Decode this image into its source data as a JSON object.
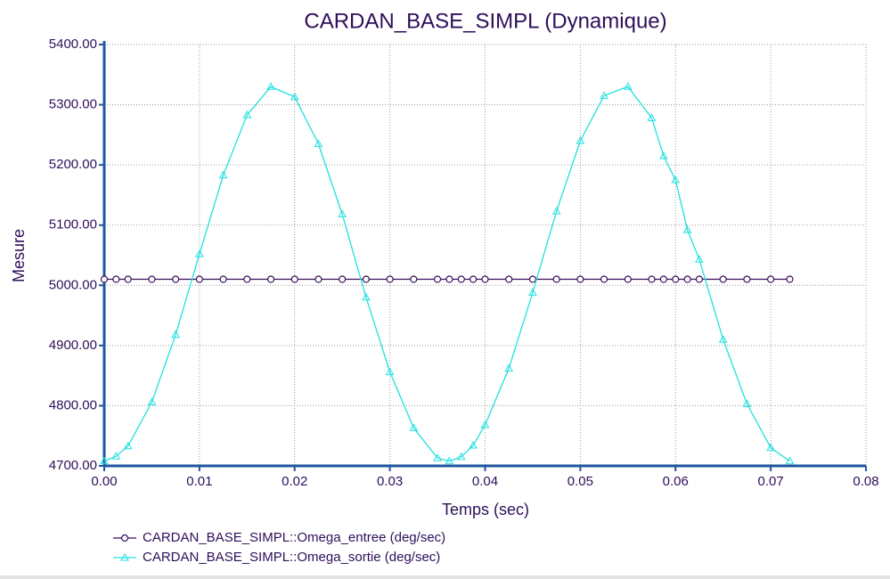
{
  "chart_data": {
    "type": "line",
    "title": "CARDAN_BASE_SIMPL (Dynamique)",
    "x_label": "Temps (sec)",
    "y_label": "Mesure",
    "x": [
      0,
      0.00125,
      0.0025,
      0.005,
      0.0075,
      0.01,
      0.0125,
      0.015,
      0.0175,
      0.02,
      0.0225,
      0.025,
      0.0275,
      0.03,
      0.0325,
      0.035,
      0.03625,
      0.0375,
      0.03875,
      0.04,
      0.0425,
      0.045,
      0.0475,
      0.05,
      0.0525,
      0.055,
      0.0575,
      0.05875,
      0.06,
      0.06125,
      0.0625,
      0.065,
      0.0675,
      0.07,
      0.072
    ],
    "series": [
      {
        "name": "CARDAN_BASE_SIMPL::Omega_entree (deg/sec)",
        "color": "#3b0f5e",
        "marker": "circle",
        "values": [
          5010,
          5010,
          5010,
          5010,
          5010,
          5010,
          5010,
          5010,
          5010,
          5010,
          5010,
          5010,
          5010,
          5010,
          5010,
          5010,
          5010,
          5010,
          5010,
          5010,
          5010,
          5010,
          5010,
          5010,
          5010,
          5010,
          5010,
          5010,
          5010,
          5010,
          5010,
          5010,
          5010,
          5010,
          5010
        ]
      },
      {
        "name": "CARDAN_BASE_SIMPL::Omega_sortie (deg/sec)",
        "color": "#22e0e0",
        "marker": "triangle",
        "values": [
          4708,
          4716,
          4733,
          4806,
          4918,
          5052,
          5183,
          5283,
          5330,
          5313,
          5235,
          5118,
          4980,
          4856,
          4763,
          4713,
          4708,
          4715,
          4734,
          4768,
          4862,
          4988,
          5123,
          5240,
          5315,
          5330,
          5278,
          5215,
          5175,
          5092,
          5043,
          4910,
          4803,
          4730,
          4708
        ]
      }
    ],
    "xlim": [
      0,
      0.08
    ],
    "xticks": [
      {
        "value": 0,
        "label": "0.00"
      },
      {
        "value": 0.01,
        "label": "0.01"
      },
      {
        "value": 0.02,
        "label": "0.02"
      },
      {
        "value": 0.03,
        "label": "0.03"
      },
      {
        "value": 0.04,
        "label": "0.04"
      },
      {
        "value": 0.05,
        "label": "0.05"
      },
      {
        "value": 0.06,
        "label": "0.06"
      },
      {
        "value": 0.07,
        "label": "0.07"
      },
      {
        "value": 0.08,
        "label": "0.08"
      }
    ],
    "ylim": [
      4700,
      5400
    ],
    "yticks": [
      {
        "value": 4700,
        "label": "4700.00"
      },
      {
        "value": 4800,
        "label": "4800.00"
      },
      {
        "value": 4900,
        "label": "4900.00"
      },
      {
        "value": 5000,
        "label": "5000.00"
      },
      {
        "value": 5100,
        "label": "5100.00"
      },
      {
        "value": 5200,
        "label": "5200.00"
      },
      {
        "value": 5300,
        "label": "5300.00"
      },
      {
        "value": 5400,
        "label": "5400.00"
      }
    ],
    "grid": true
  }
}
